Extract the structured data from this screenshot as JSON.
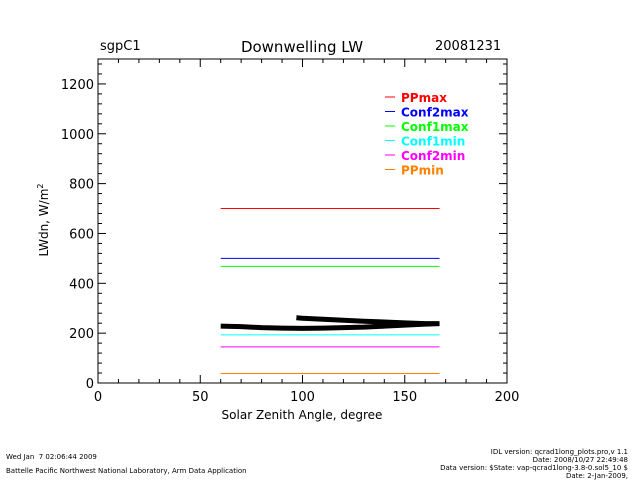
{
  "header": {
    "site": "sgpC1",
    "title": "Downwelling LW",
    "date": "20081231"
  },
  "footer": {
    "timestamp": "Wed Jan  7 02:06:44 2009",
    "lab": "Battelle Pacific Northwest National Laboratory, Arm Data Application",
    "idl_version": "IDL version: qcrad1long_plots.pro,v 1.1",
    "idl_date": "Date: 2008/10/27 22:49:48",
    "data_version": "Data version: $State: vap-qcrad1long-3.8-0.sol5_10 $",
    "data_date": "Date: 2-Jan-2009,"
  },
  "chart_data": {
    "type": "line",
    "title": "Downwelling LW",
    "xlabel": "Solar Zenith Angle, degree",
    "ylabel": "LWdn, W/m",
    "ylabel_sup": "2",
    "xlim": [
      0,
      200
    ],
    "ylim": [
      0,
      1300
    ],
    "xticks": [
      0,
      50,
      100,
      150,
      200
    ],
    "yticks": [
      0,
      200,
      400,
      600,
      800,
      1000,
      1200
    ],
    "grid": false,
    "legend_position": "top-right",
    "series": [
      {
        "name": "PPmax",
        "color": "#ff0000",
        "x": [
          60,
          167
        ],
        "y": [
          700,
          700
        ]
      },
      {
        "name": "Conf2max",
        "color": "#0000ff",
        "x": [
          60,
          167
        ],
        "y": [
          500,
          500
        ]
      },
      {
        "name": "Conf1max",
        "color": "#00ff00",
        "x": [
          60,
          167
        ],
        "y": [
          468,
          468
        ]
      },
      {
        "name": "Conf1min",
        "color": "#00ffff",
        "x": [
          60,
          167
        ],
        "y": [
          193,
          193
        ]
      },
      {
        "name": "Conf2min",
        "color": "#ff00ff",
        "x": [
          60,
          167
        ],
        "y": [
          145,
          145
        ]
      },
      {
        "name": "PPmin",
        "color": "#ff8000",
        "x": [
          60,
          167
        ],
        "y": [
          38,
          38
        ]
      }
    ],
    "data_series": {
      "name": "LWdn",
      "color": "#000000",
      "x": [
        60,
        70,
        80,
        90,
        100,
        110,
        120,
        130,
        140,
        150,
        160,
        167,
        160,
        150,
        140,
        130,
        120,
        110,
        100,
        97
      ],
      "y": [
        228,
        226,
        222,
        220,
        219,
        220,
        222,
        224,
        228,
        232,
        236,
        238,
        238,
        241,
        245,
        248,
        252,
        256,
        260,
        262
      ]
    }
  }
}
